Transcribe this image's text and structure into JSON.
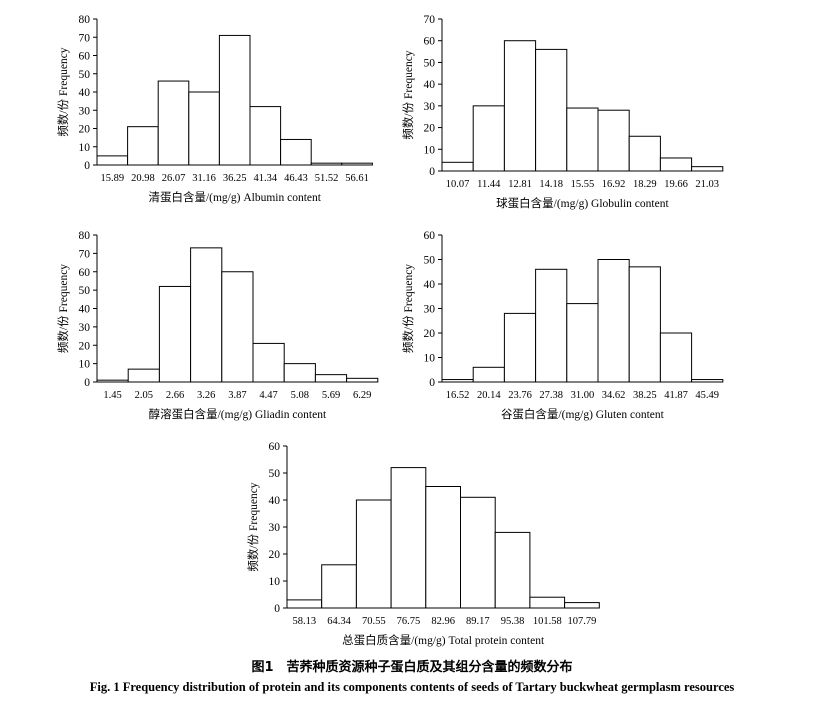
{
  "caption": {
    "cn": "图1　苦荞种质资源种子蛋白质及其组分含量的频数分布",
    "en": "Fig. 1    Frequency distribution of protein and its components contents of seeds of Tartary buckwheat germplasm resources"
  },
  "chart_data": [
    {
      "type": "bar",
      "ylabel": "频数/份 Frequency",
      "xlabel": "清蛋白含量/(mg/g) Albumin content",
      "ylim": [
        0,
        80
      ],
      "yticks": [
        0,
        10,
        20,
        30,
        40,
        50,
        60,
        70,
        80
      ],
      "edges": [
        "15.89",
        "20.98",
        "26.07",
        "31.16",
        "36.25",
        "41.34",
        "46.43",
        "51.52",
        "56.61"
      ],
      "values": [
        5,
        21,
        46,
        40,
        71,
        32,
        14,
        1,
        1
      ],
      "grid": false
    },
    {
      "type": "bar",
      "ylabel": "频数/份 Frequency",
      "xlabel": "球蛋白含量/(mg/g) Globulin content",
      "ylim": [
        0,
        70
      ],
      "yticks": [
        0,
        10,
        20,
        30,
        40,
        50,
        60,
        70
      ],
      "edges": [
        "10.07",
        "11.44",
        "12.81",
        "14.18",
        "15.55",
        "16.92",
        "18.29",
        "19.66",
        "21.03"
      ],
      "values": [
        4,
        30,
        60,
        56,
        29,
        28,
        16,
        6,
        2
      ],
      "grid": false
    },
    {
      "type": "bar",
      "ylabel": "频数/份 Frequency",
      "xlabel": "醇溶蛋白含量/(mg/g) Gliadin content",
      "ylim": [
        0,
        80
      ],
      "yticks": [
        0,
        10,
        20,
        30,
        40,
        50,
        60,
        70,
        80
      ],
      "edges": [
        "1.45",
        "2.05",
        "2.66",
        "3.26",
        "3.87",
        "4.47",
        "5.08",
        "5.69",
        "6.29"
      ],
      "values": [
        1,
        7,
        52,
        73,
        60,
        21,
        10,
        4,
        2
      ],
      "grid": false
    },
    {
      "type": "bar",
      "ylabel": "频数/份 Frequency",
      "xlabel": "谷蛋白含量/(mg/g) Gluten content",
      "ylim": [
        0,
        60
      ],
      "yticks": [
        0,
        10,
        20,
        30,
        40,
        50,
        60
      ],
      "edges": [
        "16.52",
        "20.14",
        "23.76",
        "27.38",
        "31.00",
        "34.62",
        "38.25",
        "41.87",
        "45.49"
      ],
      "values": [
        1,
        6,
        28,
        46,
        32,
        50,
        47,
        20,
        1
      ],
      "grid": false
    },
    {
      "type": "bar",
      "ylabel": "频数/份 Frequency",
      "xlabel": "总蛋白质含量/(mg/g) Total protein content",
      "ylim": [
        0,
        60
      ],
      "yticks": [
        0,
        10,
        20,
        30,
        40,
        50,
        60
      ],
      "edges": [
        "58.13",
        "64.34",
        "70.55",
        "76.75",
        "82.96",
        "89.17",
        "95.38",
        "101.58",
        "107.79"
      ],
      "values": [
        3,
        16,
        40,
        52,
        45,
        41,
        28,
        4,
        2
      ],
      "grid": false
    }
  ]
}
